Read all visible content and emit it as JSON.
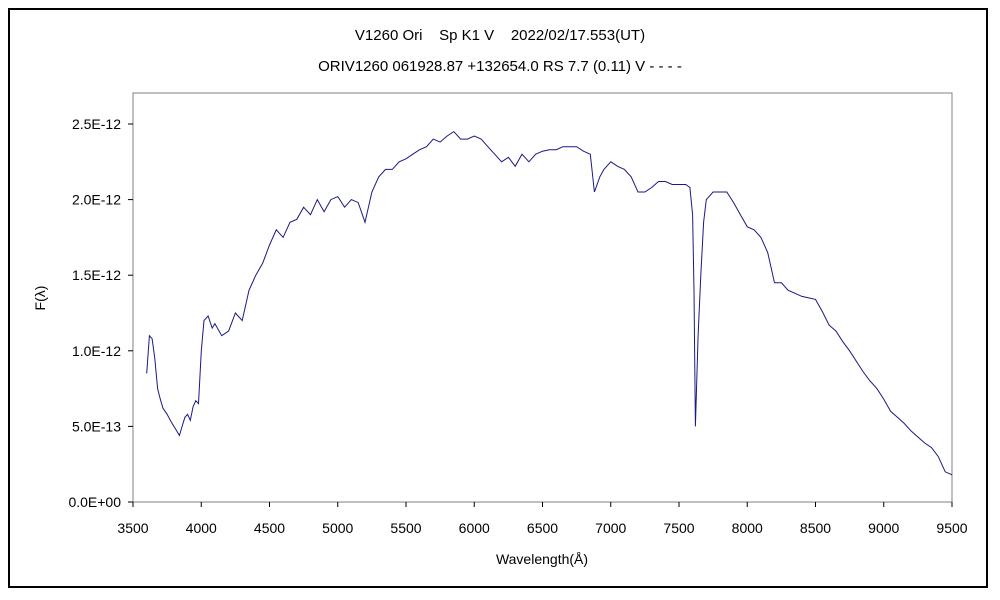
{
  "chart_data": {
    "type": "line",
    "title": "V1260 Ori    Sp K1 V    2022/02/17.553(UT)",
    "subtitle": "ORIV1260 061928.87 +132654.0 RS 7.7 (0.11) V - - - -",
    "xlabel": "Wavelength(Å)",
    "ylabel": "F(λ)",
    "xlim": [
      3500,
      9500
    ],
    "ylim": [
      0,
      2.5e-12
    ],
    "x_ticks": [
      "3500",
      "4000",
      "4500",
      "5000",
      "5500",
      "6000",
      "6500",
      "7000",
      "7500",
      "8000",
      "8500",
      "9000",
      "9500"
    ],
    "y_ticks": [
      "0.0E+00",
      "5.0E-13",
      "1.0E-12",
      "1.5E-12",
      "2.0E-12",
      "2.5E-12"
    ],
    "grid": false,
    "line_color": "#1a1a80",
    "series": [
      {
        "x": [
          3600,
          3620,
          3640,
          3660,
          3680,
          3700,
          3720,
          3750,
          3780,
          3800,
          3820,
          3840,
          3860,
          3880,
          3900,
          3920,
          3940,
          3960,
          3980,
          4000,
          4020,
          4050,
          4080,
          4100,
          4150,
          4200,
          4250,
          4300,
          4350,
          4400,
          4450,
          4500,
          4550,
          4600,
          4650,
          4700,
          4750,
          4800,
          4850,
          4900,
          4950,
          5000,
          5050,
          5100,
          5150,
          5200,
          5250,
          5300,
          5350,
          5400,
          5450,
          5500,
          5550,
          5600,
          5650,
          5700,
          5750,
          5800,
          5850,
          5900,
          5950,
          6000,
          6050,
          6100,
          6150,
          6200,
          6250,
          6300,
          6350,
          6400,
          6450,
          6500,
          6550,
          6600,
          6650,
          6700,
          6750,
          6800,
          6850,
          6880,
          6900,
          6920,
          6950,
          7000,
          7050,
          7100,
          7150,
          7200,
          7250,
          7300,
          7350,
          7400,
          7450,
          7500,
          7550,
          7580,
          7600,
          7610,
          7620,
          7640,
          7660,
          7680,
          7700,
          7750,
          7800,
          7850,
          7900,
          7950,
          8000,
          8050,
          8100,
          8150,
          8200,
          8250,
          8300,
          8350,
          8400,
          8450,
          8500,
          8550,
          8600,
          8650,
          8700,
          8750,
          8800,
          8850,
          8900,
          8950,
          9000,
          9050,
          9100,
          9150,
          9200,
          9250,
          9300,
          9350,
          9400,
          9450,
          9500
        ],
        "y": [
          8.5e-13,
          1.1e-12,
          1.08e-12,
          9.5e-13,
          7.5e-13,
          6.8e-13,
          6.2e-13,
          5.8e-13,
          5.3e-13,
          5e-13,
          4.7e-13,
          4.4e-13,
          5e-13,
          5.6e-13,
          5.8e-13,
          5.4e-13,
          6.3e-13,
          6.7e-13,
          6.5e-13,
          1e-12,
          1.2e-12,
          1.23e-12,
          1.15e-12,
          1.18e-12,
          1.1e-12,
          1.13e-12,
          1.25e-12,
          1.2e-12,
          1.4e-12,
          1.5e-12,
          1.58e-12,
          1.7e-12,
          1.8e-12,
          1.75e-12,
          1.85e-12,
          1.87e-12,
          1.95e-12,
          1.9e-12,
          2e-12,
          1.92e-12,
          2e-12,
          2.02e-12,
          1.95e-12,
          2e-12,
          1.98e-12,
          1.85e-12,
          2.05e-12,
          2.15e-12,
          2.2e-12,
          2.2e-12,
          2.25e-12,
          2.27e-12,
          2.3e-12,
          2.33e-12,
          2.35e-12,
          2.4e-12,
          2.38e-12,
          2.42e-12,
          2.45e-12,
          2.4e-12,
          2.4e-12,
          2.42e-12,
          2.4e-12,
          2.35e-12,
          2.3e-12,
          2.25e-12,
          2.28e-12,
          2.22e-12,
          2.3e-12,
          2.25e-12,
          2.3e-12,
          2.32e-12,
          2.33e-12,
          2.33e-12,
          2.35e-12,
          2.35e-12,
          2.35e-12,
          2.32e-12,
          2.3e-12,
          2.05e-12,
          2.1e-12,
          2.15e-12,
          2.2e-12,
          2.25e-12,
          2.22e-12,
          2.2e-12,
          2.15e-12,
          2.05e-12,
          2.05e-12,
          2.08e-12,
          2.12e-12,
          2.12e-12,
          2.1e-12,
          2.1e-12,
          2.1e-12,
          2.08e-12,
          1.9e-12,
          1.4e-12,
          5e-13,
          1.1e-12,
          1.5e-12,
          1.85e-12,
          2e-12,
          2.05e-12,
          2.05e-12,
          2.05e-12,
          1.98e-12,
          1.9e-12,
          1.82e-12,
          1.8e-12,
          1.75e-12,
          1.65e-12,
          1.45e-12,
          1.45e-12,
          1.4e-12,
          1.38e-12,
          1.36e-12,
          1.35e-12,
          1.34e-12,
          1.26e-12,
          1.17e-12,
          1.13e-12,
          1.06e-12,
          1e-12,
          9.3e-13,
          8.6e-13,
          8e-13,
          7.5e-13,
          6.8e-13,
          6e-13,
          5.6e-13,
          5.2e-13,
          4.7e-13,
          4.3e-13,
          3.9e-13,
          3.6e-13,
          3e-13,
          2e-13,
          1.8e-13
        ]
      }
    ]
  }
}
